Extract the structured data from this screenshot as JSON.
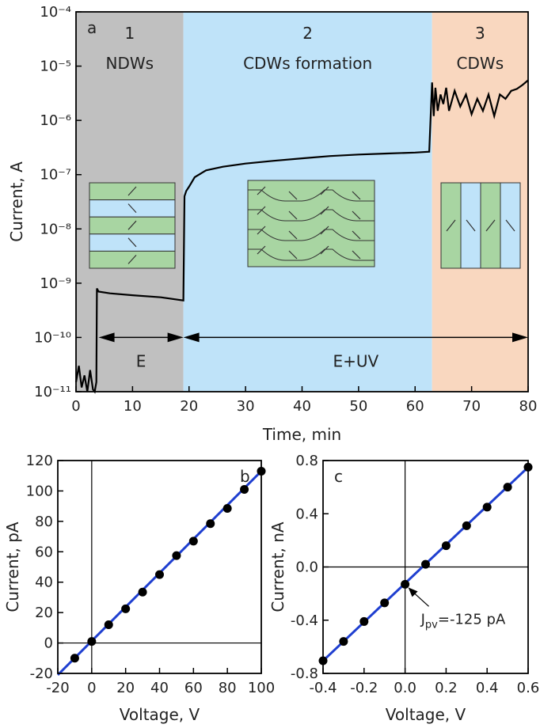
{
  "chart_data": [
    {
      "type": "line",
      "label": "a",
      "x_label": "Time, min",
      "y_label": "Current, A",
      "log_y": true,
      "xlim": [
        0,
        80
      ],
      "xticks": [
        0,
        10,
        20,
        30,
        40,
        50,
        60,
        70,
        80
      ],
      "ylim": [
        1e-11,
        0.0001
      ],
      "yticks": [
        {
          "value": 1e-11,
          "label": "10⁻¹¹"
        },
        {
          "value": 1e-10,
          "label": "10⁻¹⁰"
        },
        {
          "value": 1e-09,
          "label": "10⁻⁹"
        },
        {
          "value": 1e-08,
          "label": "10⁻⁸"
        },
        {
          "value": 1e-07,
          "label": "10⁻⁷"
        },
        {
          "value": 1e-06,
          "label": "10⁻⁶"
        },
        {
          "value": 1e-05,
          "label": "10⁻⁵"
        },
        {
          "value": 0.0001,
          "label": "10⁻⁴"
        }
      ],
      "regions": [
        {
          "x": [
            0,
            19
          ],
          "color": "#c0c0c0",
          "labels": [
            "1",
            "NDWs"
          ]
        },
        {
          "x": [
            19,
            63
          ],
          "color": "#bfe3f9",
          "labels": [
            "2",
            "CDWs formation"
          ]
        },
        {
          "x": [
            63,
            80
          ],
          "color": "#f9d7bf",
          "labels": [
            "3",
            "CDWs"
          ]
        }
      ],
      "arrows": [
        {
          "x": [
            4,
            19
          ],
          "y": 1e-10,
          "label": "E"
        },
        {
          "x": [
            19,
            80
          ],
          "y": 1e-10,
          "label": "E+UV"
        }
      ],
      "color": "#000000",
      "x": [
        0,
        0.5,
        1,
        1.5,
        2,
        2.5,
        3,
        3.3,
        3.6,
        3.7,
        4,
        6,
        10,
        15,
        19,
        19.2,
        19.5,
        20,
        21,
        23,
        26,
        30,
        35,
        40,
        45,
        50,
        55,
        60,
        62.5,
        62.8,
        63,
        63.3,
        63.6,
        64,
        64.5,
        65,
        65.5,
        66,
        67,
        68,
        69,
        70,
        71,
        72,
        73,
        74,
        75,
        76,
        77,
        78,
        79,
        80
      ],
      "values": [
        1.5e-11,
        3e-11,
        1.2e-11,
        2e-11,
        1e-11,
        2.5e-11,
        1.1e-11,
        1e-11,
        1.5e-11,
        8e-10,
        7e-10,
        6.5e-10,
        6e-10,
        5.5e-10,
        4.8e-10,
        4e-08,
        5e-08,
        6e-08,
        9e-08,
        1.2e-07,
        1.4e-07,
        1.6e-07,
        1.8e-07,
        2e-07,
        2.2e-07,
        2.35e-07,
        2.45e-07,
        2.55e-07,
        2.65e-07,
        1.5e-06,
        5e-06,
        1.2e-06,
        4e-06,
        1.5e-06,
        3e-06,
        2e-06,
        4e-06,
        1.5e-06,
        3.5e-06,
        1.8e-06,
        3e-06,
        1.3e-06,
        2.5e-06,
        1.5e-06,
        3e-06,
        1.2e-06,
        3e-06,
        2.5e-06,
        3.5e-06,
        3.8e-06,
        4.5e-06,
        5.5e-06
      ]
    },
    {
      "type": "scatter",
      "label": "b",
      "x_label": "Voltage, V",
      "y_label": "Current, pA",
      "zero_lines": true,
      "xlim": [
        -20,
        100
      ],
      "xticks": [
        -20,
        0,
        20,
        40,
        60,
        80,
        100
      ],
      "ylim": [
        -20,
        120
      ],
      "yticks": [
        -20,
        0,
        20,
        40,
        60,
        80,
        100,
        120
      ],
      "points": {
        "color": "#000000",
        "x": [
          -10,
          0,
          10,
          20,
          30,
          40,
          50,
          60,
          70,
          80,
          90,
          100
        ],
        "y": [
          -10,
          1,
          12,
          22.5,
          33.5,
          45,
          57.5,
          67,
          78.5,
          88.5,
          101,
          113
        ]
      },
      "fit": {
        "color": "#1f3fd0",
        "x": [
          -20,
          100
        ],
        "y": [
          -21,
          113
        ]
      }
    },
    {
      "type": "scatter",
      "label": "c",
      "x_label": "Voltage, V",
      "y_label": "Current, nA",
      "zero_lines": true,
      "xlim": [
        -0.4,
        0.6
      ],
      "xticks": [
        -0.4,
        -0.2,
        {
          "value": 0,
          "label": "0.0"
        },
        0.2,
        0.4,
        0.6
      ],
      "ylim": [
        -0.8,
        0.8
      ],
      "yticks": [
        -0.8,
        -0.4,
        {
          "value": 0,
          "label": "0.0"
        },
        0.4,
        0.8
      ],
      "points": {
        "color": "#000000",
        "x": [
          -0.4,
          -0.3,
          -0.2,
          -0.1,
          0,
          0.1,
          0.2,
          0.3,
          0.4,
          0.5,
          0.6
        ],
        "y": [
          -0.705,
          -0.56,
          -0.41,
          -0.27,
          -0.13,
          0.02,
          0.16,
          0.31,
          0.45,
          0.6,
          0.75
        ]
      },
      "fit": {
        "color": "#1f3fd0",
        "x": [
          -0.4,
          0.6
        ],
        "y": [
          -0.705,
          0.75
        ]
      },
      "annotation": [
        "J",
        "pv",
        "=-125 pA"
      ]
    }
  ]
}
